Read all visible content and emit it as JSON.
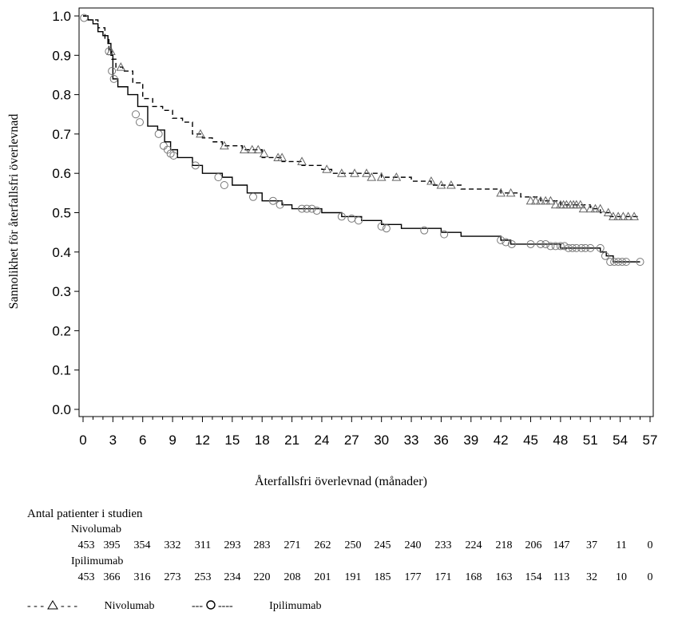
{
  "chart_data": {
    "type": "line",
    "title": "",
    "xlabel": "Återfallsfri överlevnad (månader)",
    "ylabel": "Sannolikhet för återfallsfri överlevnad",
    "xlim": [
      0,
      57
    ],
    "ylim": [
      0,
      1.0
    ],
    "x_ticks": [
      "0",
      "3",
      "6",
      "9",
      "12",
      "15",
      "18",
      "21",
      "24",
      "27",
      "30",
      "33",
      "36",
      "39",
      "42",
      "45",
      "48",
      "51",
      "54",
      "57"
    ],
    "y_ticks": [
      "0.0",
      "0.1",
      "0.2",
      "0.3",
      "0.4",
      "0.5",
      "0.6",
      "0.7",
      "0.8",
      "0.9",
      "1.0"
    ],
    "series": [
      {
        "name": "Nivolumab",
        "style": "dashed",
        "marker": "triangle",
        "color": "#000000",
        "x": [
          0,
          0.5,
          1.5,
          2.2,
          2.6,
          2.9,
          3.3,
          4.0,
          5.0,
          6.0,
          7.0,
          8.0,
          9.0,
          10.0,
          11.0,
          12.0,
          13.0,
          14.0,
          16.0,
          18.0,
          20.0,
          22.0,
          24.0,
          25.0,
          30.0,
          33.0,
          35.0,
          38.0,
          42.0,
          44.0,
          46.0,
          48.0,
          51.0,
          52.0,
          53.0,
          56.0
        ],
        "y": [
          1.0,
          0.99,
          0.97,
          0.94,
          0.91,
          0.89,
          0.87,
          0.86,
          0.83,
          0.79,
          0.77,
          0.76,
          0.74,
          0.73,
          0.7,
          0.69,
          0.68,
          0.67,
          0.66,
          0.64,
          0.63,
          0.62,
          0.61,
          0.6,
          0.59,
          0.58,
          0.57,
          0.56,
          0.55,
          0.54,
          0.53,
          0.52,
          0.51,
          0.5,
          0.49,
          0.49
        ],
        "censor_x": [
          2.8,
          3.8,
          11.8,
          14.2,
          16.2,
          17.0,
          17.6,
          18.2,
          19.6,
          20.0,
          22.0,
          24.5,
          26.0,
          27.3,
          28.5,
          29.0,
          30.0,
          31.5,
          35.0,
          36.0,
          37.0,
          42.0,
          43.0,
          45.0,
          45.5,
          46.0,
          46.5,
          47.0,
          47.5,
          48.0,
          48.3,
          48.6,
          49.0,
          49.3,
          49.6,
          50.0,
          50.3,
          51.0,
          51.5,
          52.0,
          52.8,
          53.3,
          53.8,
          54.3,
          54.8,
          55.4
        ],
        "censor_y": [
          0.91,
          0.87,
          0.7,
          0.67,
          0.66,
          0.66,
          0.66,
          0.65,
          0.64,
          0.64,
          0.63,
          0.61,
          0.6,
          0.6,
          0.6,
          0.59,
          0.59,
          0.59,
          0.58,
          0.57,
          0.57,
          0.55,
          0.55,
          0.53,
          0.53,
          0.53,
          0.53,
          0.53,
          0.52,
          0.52,
          0.52,
          0.52,
          0.52,
          0.52,
          0.52,
          0.52,
          0.51,
          0.51,
          0.51,
          0.51,
          0.5,
          0.49,
          0.49,
          0.49,
          0.49,
          0.49
        ]
      },
      {
        "name": "Ipilimumab",
        "style": "solid",
        "marker": "circle",
        "color": "#000000",
        "x": [
          0,
          0.5,
          1.0,
          1.5,
          2.0,
          2.5,
          2.8,
          3.0,
          3.5,
          4.5,
          5.5,
          6.5,
          7.5,
          8.2,
          8.8,
          9.5,
          11.0,
          12.0,
          13.0,
          14.0,
          15.0,
          16.5,
          18.0,
          20.0,
          21.0,
          24.0,
          26.0,
          28.0,
          30.0,
          32.0,
          34.0,
          36.0,
          38.0,
          40.0,
          42.0,
          43.0,
          46.0,
          48.0,
          51.0,
          52.0,
          52.6,
          53.3,
          56.0
        ],
        "y": [
          1.0,
          0.99,
          0.98,
          0.96,
          0.95,
          0.93,
          0.9,
          0.84,
          0.82,
          0.8,
          0.77,
          0.72,
          0.71,
          0.68,
          0.66,
          0.64,
          0.62,
          0.6,
          0.6,
          0.59,
          0.57,
          0.55,
          0.53,
          0.52,
          0.51,
          0.5,
          0.49,
          0.48,
          0.47,
          0.46,
          0.46,
          0.45,
          0.44,
          0.44,
          0.43,
          0.42,
          0.42,
          0.41,
          0.41,
          0.4,
          0.39,
          0.375,
          0.375
        ],
        "censor_x": [
          0.1,
          2.6,
          2.9,
          3.1,
          5.3,
          5.7,
          7.6,
          8.1,
          8.5,
          8.8,
          9.1,
          11.3,
          13.6,
          14.2,
          17.1,
          19.1,
          19.8,
          22.0,
          22.5,
          23.0,
          23.5,
          26.0,
          27.0,
          27.7,
          30.0,
          30.5,
          34.3,
          36.3,
          42.0,
          42.5,
          43.1,
          45.0,
          46.0,
          46.5,
          47.0,
          47.5,
          48.0,
          48.4,
          48.8,
          49.2,
          49.6,
          50.1,
          50.5,
          51.0,
          52.0,
          52.5,
          53.0,
          53.4,
          53.8,
          54.2,
          54.6,
          56.0
        ],
        "censor_y": [
          0.995,
          0.91,
          0.86,
          0.84,
          0.75,
          0.73,
          0.7,
          0.67,
          0.66,
          0.65,
          0.645,
          0.62,
          0.59,
          0.57,
          0.54,
          0.53,
          0.52,
          0.51,
          0.51,
          0.51,
          0.505,
          0.49,
          0.485,
          0.48,
          0.465,
          0.46,
          0.455,
          0.445,
          0.43,
          0.425,
          0.42,
          0.42,
          0.42,
          0.42,
          0.415,
          0.415,
          0.415,
          0.415,
          0.41,
          0.41,
          0.41,
          0.41,
          0.41,
          0.41,
          0.41,
          0.39,
          0.375,
          0.375,
          0.375,
          0.375,
          0.375,
          0.375
        ]
      }
    ]
  },
  "risk_table": {
    "title": "Antal patienter i studien",
    "rows": [
      {
        "name": "Nivolumab",
        "values": [
          "453",
          "395",
          "354",
          "332",
          "311",
          "293",
          "283",
          "271",
          "262",
          "250",
          "245",
          "240",
          "233",
          "224",
          "218",
          "206",
          "147",
          "37",
          "11",
          "0"
        ]
      },
      {
        "name": "Ipilimumab",
        "values": [
          "453",
          "366",
          "316",
          "273",
          "253",
          "234",
          "220",
          "208",
          "201",
          "191",
          "185",
          "177",
          "171",
          "168",
          "163",
          "154",
          "113",
          "32",
          "10",
          "0"
        ]
      }
    ]
  },
  "legend": {
    "items": [
      {
        "symbol_text_left": "- - -",
        "symbol_text_right": "- - -",
        "marker": "triangle",
        "label": "Nivolumab"
      },
      {
        "symbol_text_left": "---",
        "symbol_text_right": "----",
        "marker": "circle",
        "label": "Ipilimumab"
      }
    ]
  }
}
